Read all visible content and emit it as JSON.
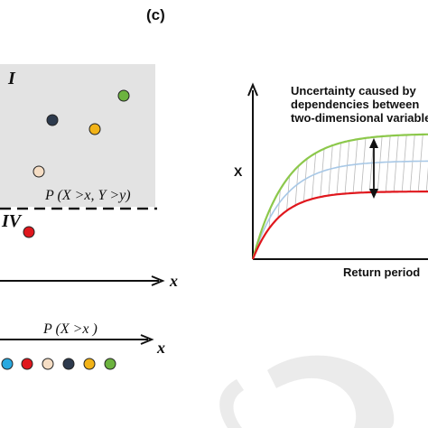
{
  "panel_label": "(c)",
  "left_diagram": {
    "region_top_label": "I",
    "region_bottom_label": "IV",
    "joint_prob_label": "P (X >x,  Y >y)",
    "marginal_prob_label": "P (X >x )",
    "axis_label_x_upper": "x",
    "axis_label_x_lower": "x",
    "region_fill": "#e3e3e3",
    "points_in_region": [
      {
        "name": "green",
        "color": "#6cb33f"
      },
      {
        "name": "navy",
        "color": "#2d3a4d"
      },
      {
        "name": "yellow",
        "color": "#f2b318"
      },
      {
        "name": "peach",
        "color": "#f5ddc4"
      }
    ],
    "point_outside": {
      "name": "red",
      "color": "#e0171d"
    },
    "row_points": [
      {
        "name": "blue",
        "color": "#29a9e0"
      },
      {
        "name": "red",
        "color": "#e0171d"
      },
      {
        "name": "peach",
        "color": "#f5ddc4"
      },
      {
        "name": "navy",
        "color": "#2d3a4d"
      },
      {
        "name": "yellow",
        "color": "#f2b318"
      },
      {
        "name": "green",
        "color": "#6cb33f"
      }
    ]
  },
  "right_chart": {
    "annotation_lines": [
      "Uncertainty caused by",
      "dependencies between",
      "two-dimensional variables"
    ],
    "ylabel": "X",
    "xlabel": "Return period",
    "curves": [
      {
        "name": "upper",
        "color": "#8cc84b"
      },
      {
        "name": "middle",
        "color": "#a8c8e6"
      },
      {
        "name": "lower",
        "color": "#e0171d"
      }
    ]
  }
}
